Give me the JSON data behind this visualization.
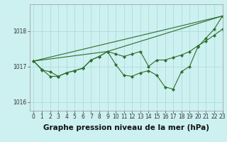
{
  "background_color": "#cdf0f0",
  "grid_color": "#a8d8d8",
  "line_color": "#2d6e2d",
  "xlabel": "Graphe pression niveau de la mer (hPa)",
  "xlim": [
    -0.5,
    23
  ],
  "ylim": [
    1015.75,
    1018.75
  ],
  "yticks": [
    1016,
    1017,
    1018
  ],
  "xticks": [
    0,
    1,
    2,
    3,
    4,
    5,
    6,
    7,
    8,
    9,
    10,
    11,
    12,
    13,
    14,
    15,
    16,
    17,
    18,
    19,
    20,
    21,
    22,
    23
  ],
  "series": [
    {
      "x": [
        0,
        1,
        2,
        3,
        4,
        5,
        6,
        7,
        8,
        9,
        10,
        11,
        12,
        13,
        14,
        15,
        16,
        17,
        18,
        19,
        20,
        21,
        22,
        23
      ],
      "y": [
        1017.15,
        1016.9,
        1016.85,
        1016.72,
        1016.82,
        1016.88,
        1016.95,
        1017.18,
        1017.28,
        1017.42,
        1017.05,
        1016.75,
        1016.72,
        1016.82,
        1016.88,
        1016.75,
        1016.42,
        1016.36,
        1016.85,
        1017.0,
        1017.55,
        1017.8,
        1018.05,
        1018.42
      ],
      "marker": true
    },
    {
      "x": [
        0,
        1,
        2,
        3,
        4,
        5,
        6,
        7,
        8,
        9,
        10,
        11,
        12,
        13,
        14,
        15,
        16,
        17,
        18,
        19,
        20,
        21,
        22,
        23
      ],
      "y": [
        1017.15,
        1016.92,
        1016.72,
        1016.72,
        1016.82,
        1016.88,
        1016.95,
        1017.18,
        1017.28,
        1017.42,
        1017.35,
        1017.28,
        1017.35,
        1017.42,
        1017.0,
        1017.18,
        1017.18,
        1017.25,
        1017.32,
        1017.42,
        1017.58,
        1017.72,
        1017.88,
        1018.05
      ],
      "marker": true
    },
    {
      "x": [
        0,
        23
      ],
      "y": [
        1017.15,
        1018.42
      ],
      "marker": false
    },
    {
      "x": [
        0,
        9,
        23
      ],
      "y": [
        1017.15,
        1017.42,
        1018.42
      ],
      "marker": false
    }
  ],
  "tick_fontsize": 5.5,
  "xlabel_fontsize": 7.5
}
